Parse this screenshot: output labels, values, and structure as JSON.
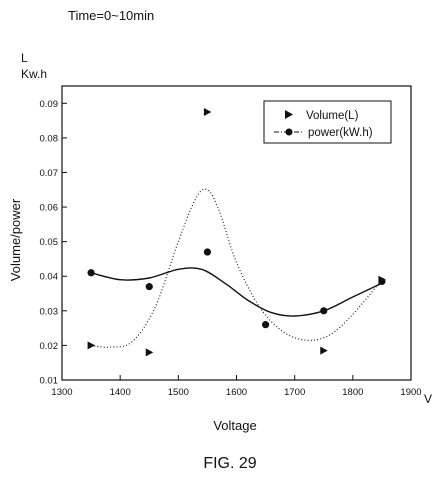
{
  "chart_data": {
    "type": "scatter",
    "title": "Time=0~10min",
    "figure_label": "FIG. 29",
    "xlabel": "Voltage",
    "x_unit": "V",
    "ylabel": "Volume/power",
    "y_units": [
      "L",
      "Kw.h"
    ],
    "xlim": [
      1300,
      1900
    ],
    "ylim": [
      0.01,
      0.095
    ],
    "x_ticks": [
      1300,
      1400,
      1500,
      1600,
      1700,
      1800,
      1900
    ],
    "y_ticks": [
      0.01,
      0.02,
      0.03,
      0.04,
      0.05,
      0.06,
      0.07,
      0.08,
      0.09
    ],
    "grid": false,
    "legend_position": "top-right",
    "series": [
      {
        "name": "Volume(L)",
        "marker": "triangle-right",
        "line": "dotted",
        "color": "#111111",
        "points": [
          {
            "x": 1350,
            "y": 0.02
          },
          {
            "x": 1450,
            "y": 0.018
          },
          {
            "x": 1550,
            "y": 0.0875
          },
          {
            "x": 1750,
            "y": 0.0185
          },
          {
            "x": 1850,
            "y": 0.039
          }
        ],
        "fit_curve": [
          {
            "x": 1350,
            "y": 0.02
          },
          {
            "x": 1380,
            "y": 0.0195
          },
          {
            "x": 1420,
            "y": 0.021
          },
          {
            "x": 1460,
            "y": 0.031
          },
          {
            "x": 1500,
            "y": 0.05
          },
          {
            "x": 1530,
            "y": 0.0625
          },
          {
            "x": 1550,
            "y": 0.065
          },
          {
            "x": 1570,
            "y": 0.059
          },
          {
            "x": 1600,
            "y": 0.044
          },
          {
            "x": 1640,
            "y": 0.031
          },
          {
            "x": 1680,
            "y": 0.024
          },
          {
            "x": 1720,
            "y": 0.0215
          },
          {
            "x": 1760,
            "y": 0.023
          },
          {
            "x": 1800,
            "y": 0.029
          },
          {
            "x": 1850,
            "y": 0.039
          }
        ]
      },
      {
        "name": "power(kW.h)",
        "marker": "circle",
        "line": "solid",
        "color": "#111111",
        "points": [
          {
            "x": 1350,
            "y": 0.041
          },
          {
            "x": 1450,
            "y": 0.037
          },
          {
            "x": 1550,
            "y": 0.047
          },
          {
            "x": 1650,
            "y": 0.026
          },
          {
            "x": 1750,
            "y": 0.03
          },
          {
            "x": 1850,
            "y": 0.0385
          }
        ],
        "fit_curve": [
          {
            "x": 1350,
            "y": 0.041
          },
          {
            "x": 1400,
            "y": 0.039
          },
          {
            "x": 1450,
            "y": 0.0395
          },
          {
            "x": 1500,
            "y": 0.042
          },
          {
            "x": 1540,
            "y": 0.042
          },
          {
            "x": 1580,
            "y": 0.038
          },
          {
            "x": 1620,
            "y": 0.033
          },
          {
            "x": 1660,
            "y": 0.0295
          },
          {
            "x": 1700,
            "y": 0.0285
          },
          {
            "x": 1750,
            "y": 0.03
          },
          {
            "x": 1800,
            "y": 0.034
          },
          {
            "x": 1850,
            "y": 0.038
          }
        ]
      }
    ]
  }
}
